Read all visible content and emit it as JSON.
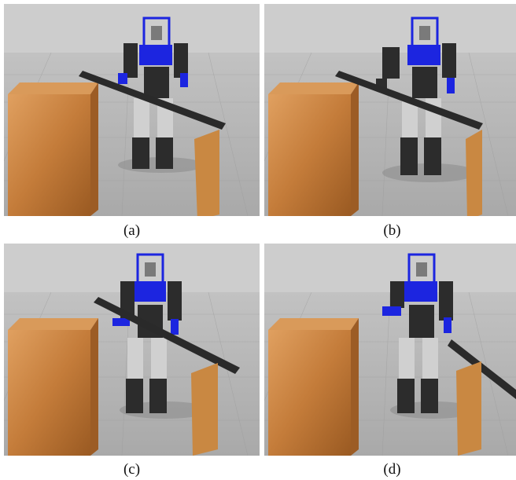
{
  "figure": {
    "panels": [
      {
        "id": "a",
        "caption": "(a)",
        "scene": "robot-with-plank-on-box"
      },
      {
        "id": "b",
        "caption": "(b)",
        "scene": "robot-with-plank-on-box"
      },
      {
        "id": "c",
        "caption": "(c)",
        "scene": "robot-with-plank-on-box"
      },
      {
        "id": "d",
        "caption": "(d)",
        "scene": "robot-with-plank-on-box"
      }
    ]
  },
  "colors": {
    "sky": "#c9c9c9",
    "floor": "#b4b4b4",
    "box_wood": "#c9803a",
    "plank": "#2a2a2a",
    "robot_blue": "#1c25e0",
    "robot_dark": "#2c2c2c"
  }
}
